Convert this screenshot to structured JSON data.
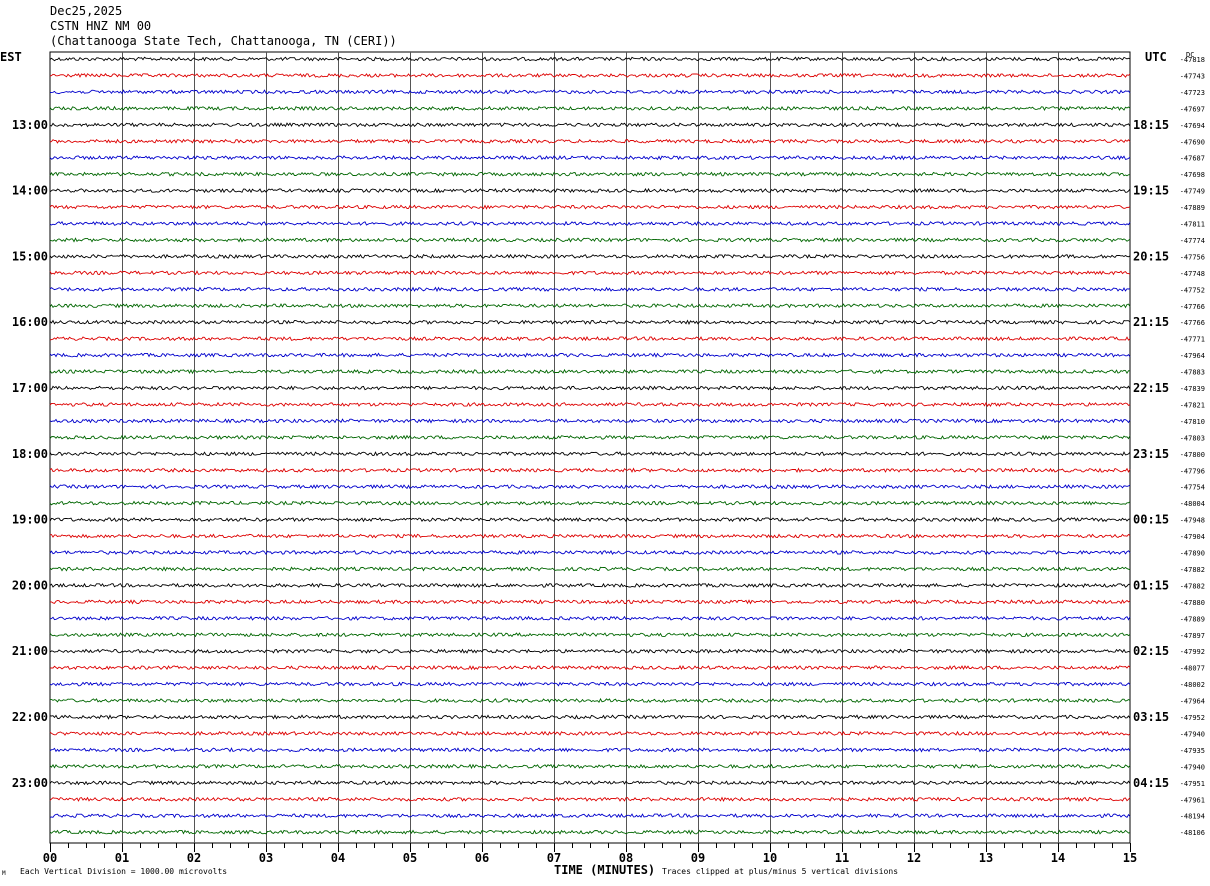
{
  "header": {
    "date": "Dec25,2025",
    "station": "CSTN HNZ NM 00",
    "location": "(Chattanooga State Tech, Chattanooga, TN (CERI))"
  },
  "left_tz": "EST",
  "right_tz": "UTC",
  "dc_label": "DC",
  "footer": {
    "scale_note": "Each Vertical Division = 1000.00 microvolts",
    "clip_note": "Traces clipped at plus/minus 5 vertical divisions",
    "corner_mark": "M"
  },
  "colors": {
    "trace_cycle": [
      "#000000",
      "#dd0000",
      "#0000cc",
      "#006600"
    ],
    "grid": "#555555"
  },
  "chart_data": {
    "type": "line",
    "title": "",
    "xlabel": "TIME (MINUTES)",
    "xlim": [
      0,
      15
    ],
    "x_ticks": [
      "00",
      "01",
      "02",
      "03",
      "04",
      "05",
      "06",
      "07",
      "08",
      "09",
      "10",
      "11",
      "12",
      "13",
      "14",
      "15"
    ],
    "left_time_labels": [
      "13:00",
      "14:00",
      "15:00",
      "16:00",
      "17:00",
      "18:00",
      "19:00",
      "20:00",
      "21:00",
      "22:00",
      "23:00"
    ],
    "right_time_labels": [
      "18:15",
      "19:15",
      "20:15",
      "21:15",
      "22:15",
      "23:15",
      "00:15",
      "01:15",
      "02:15",
      "03:15",
      "04:15"
    ],
    "first_labeled_trace": 4,
    "traces_per_label": 4,
    "dc_offsets": [
      "-47818",
      "-47743",
      "-47723",
      "-47697",
      "-47694",
      "-47690",
      "-47687",
      "-47698",
      "-47749",
      "-47889",
      "-47811",
      "-47774",
      "-47756",
      "-47748",
      "-47752",
      "-47766",
      "-47766",
      "-47771",
      "-47964",
      "-47883",
      "-47839",
      "-47821",
      "-47810",
      "-47803",
      "-47800",
      "-47796",
      "-47754",
      "-48004",
      "-47948",
      "-47904",
      "-47890",
      "-47882",
      "-47882",
      "-47880",
      "-47889",
      "-47897",
      "-47992",
      "-48077",
      "-48002",
      "-47964",
      "-47952",
      "-47940",
      "-47935",
      "-47940",
      "-47951",
      "-47961",
      "-48194",
      "-48106"
    ]
  }
}
